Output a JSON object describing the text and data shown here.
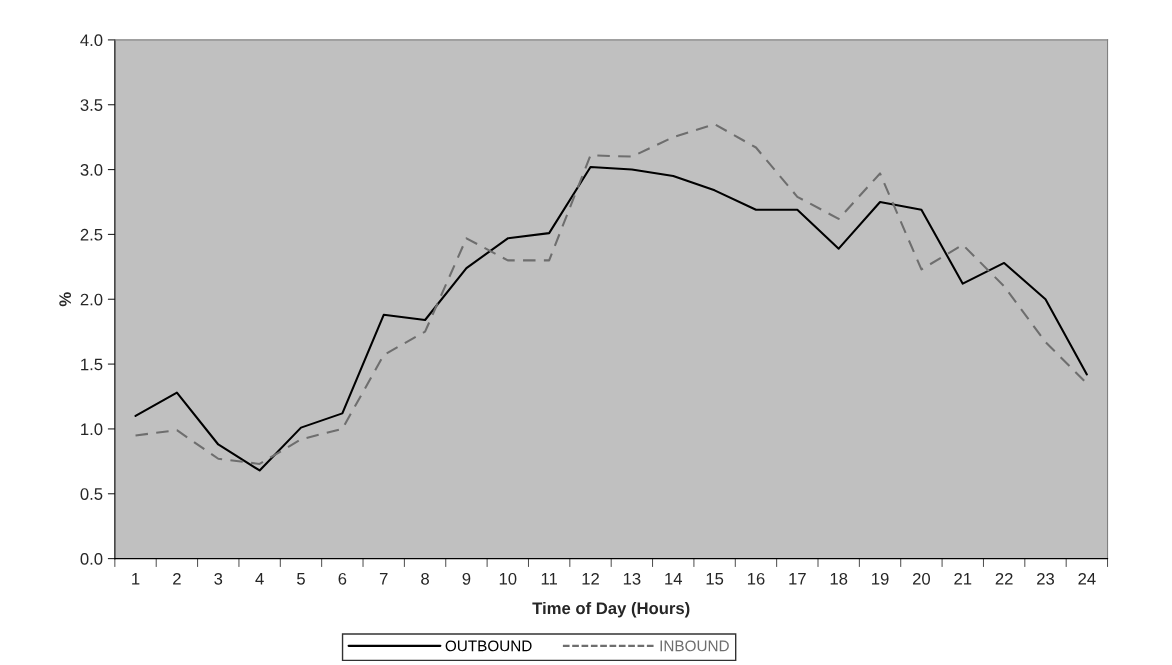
{
  "chart_data": {
    "type": "line",
    "xlabel": "Time of Day (Hours)",
    "ylabel": "%",
    "categories": [
      "1",
      "2",
      "3",
      "4",
      "5",
      "6",
      "7",
      "8",
      "9",
      "10",
      "11",
      "12",
      "13",
      "14",
      "15",
      "16",
      "17",
      "18",
      "19",
      "20",
      "21",
      "22",
      "23",
      "24"
    ],
    "series": [
      {
        "name": "OUTBOUND",
        "color": "#000000",
        "line_style": "solid",
        "values": [
          1.1,
          1.28,
          0.88,
          0.68,
          1.01,
          1.12,
          1.88,
          1.84,
          2.24,
          2.47,
          2.51,
          3.02,
          3.0,
          2.95,
          2.84,
          2.69,
          2.69,
          2.39,
          2.75,
          2.69,
          2.12,
          2.28,
          2.0,
          1.42
        ]
      },
      {
        "name": "INBOUND",
        "color": "#6e6e6e",
        "line_style": "dashed",
        "values": [
          0.95,
          0.99,
          0.77,
          0.73,
          0.92,
          1.0,
          1.57,
          1.75,
          2.47,
          2.3,
          2.3,
          3.11,
          3.1,
          3.25,
          3.35,
          3.17,
          2.79,
          2.62,
          2.97,
          2.23,
          2.42,
          2.1,
          1.67,
          1.35
        ]
      }
    ],
    "ylim": [
      0,
      4
    ],
    "yticks": [
      {
        "value": 0,
        "label": "0.0"
      },
      {
        "value": 0.5,
        "label": "0.5"
      },
      {
        "value": 1,
        "label": "1.0"
      },
      {
        "value": 1.5,
        "label": "1.5"
      },
      {
        "value": 2,
        "label": "2.0"
      },
      {
        "value": 2.5,
        "label": "2.5"
      },
      {
        "value": 3,
        "label": "3.0"
      },
      {
        "value": 3.5,
        "label": "3.5"
      },
      {
        "value": 4,
        "label": "4.0"
      }
    ],
    "grid": false,
    "legend": "bottom",
    "marker": "none"
  }
}
